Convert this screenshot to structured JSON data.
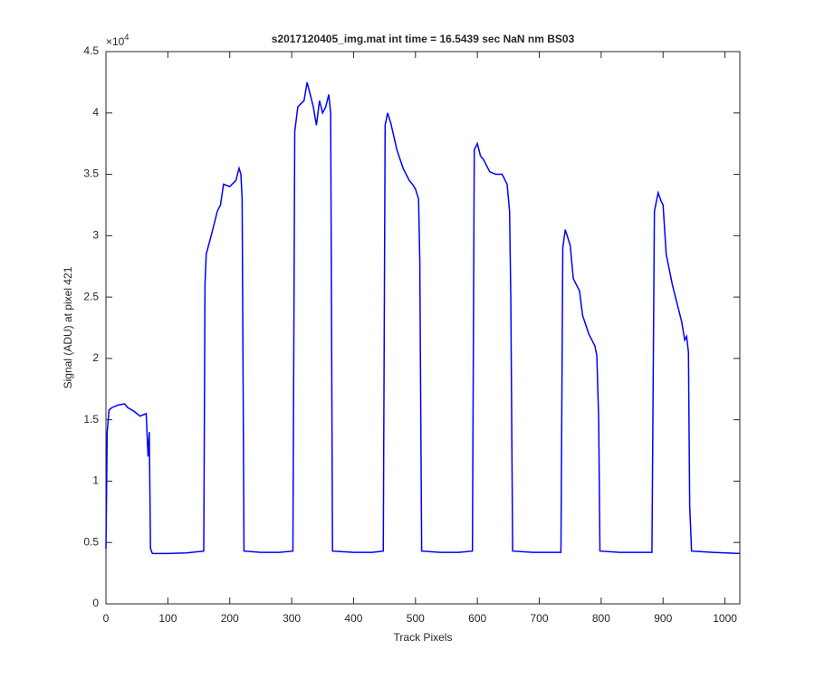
{
  "chart_data": {
    "type": "line",
    "title": "s2017120405_img.mat int time = 16.5439 sec  NaN nm BS03",
    "x_label": "Track Pixels",
    "y_label": "Signal (ADU) at pixel 421",
    "y_multiplier": {
      "base": "×10",
      "power": "4"
    },
    "xlim": [
      0,
      1024
    ],
    "xticks": [
      0,
      100,
      200,
      300,
      400,
      500,
      600,
      700,
      800,
      900,
      1000
    ],
    "ylim": [
      0,
      4.5
    ],
    "yticks": [
      0,
      0.5,
      1,
      1.5,
      2,
      2.5,
      3,
      3.5,
      4,
      4.5
    ],
    "grid": false,
    "color": "#0000ff",
    "x": [
      0,
      2,
      5,
      10,
      20,
      30,
      35,
      45,
      55,
      65,
      68,
      70,
      72,
      75,
      100,
      130,
      158,
      160,
      162,
      170,
      180,
      185,
      190,
      200,
      210,
      215,
      218,
      220,
      223,
      250,
      280,
      302,
      305,
      310,
      320,
      325,
      330,
      335,
      340,
      345,
      350,
      355,
      360,
      363,
      366,
      400,
      430,
      448,
      451,
      455,
      460,
      470,
      480,
      490,
      495,
      500,
      505,
      507,
      510,
      540,
      570,
      592,
      595,
      600,
      605,
      610,
      620,
      630,
      640,
      648,
      652,
      654,
      657,
      690,
      720,
      735,
      738,
      742,
      750,
      755,
      765,
      770,
      780,
      785,
      790,
      793,
      796,
      798,
      830,
      860,
      882,
      886,
      892,
      897,
      900,
      905,
      915,
      925,
      930,
      935,
      938,
      941,
      943,
      946,
      980,
      1024
    ],
    "values": [
      0.45,
      1.4,
      1.58,
      1.6,
      1.62,
      1.63,
      1.6,
      1.57,
      1.53,
      1.55,
      1.2,
      1.4,
      0.45,
      0.41,
      0.41,
      0.415,
      0.43,
      2.6,
      2.85,
      3.0,
      3.2,
      3.25,
      3.42,
      3.4,
      3.45,
      3.55,
      3.5,
      3.3,
      0.43,
      0.42,
      0.42,
      0.43,
      3.85,
      4.05,
      4.1,
      4.25,
      4.15,
      4.05,
      3.9,
      4.1,
      4.0,
      4.05,
      4.15,
      4.0,
      0.43,
      0.42,
      0.42,
      0.43,
      3.9,
      4.0,
      3.92,
      3.7,
      3.55,
      3.45,
      3.42,
      3.38,
      3.3,
      2.8,
      0.43,
      0.42,
      0.42,
      0.43,
      3.7,
      3.75,
      3.65,
      3.62,
      3.52,
      3.5,
      3.5,
      3.42,
      3.2,
      2.5,
      0.43,
      0.42,
      0.42,
      0.42,
      2.9,
      3.05,
      2.92,
      2.65,
      2.55,
      2.35,
      2.2,
      2.15,
      2.1,
      2.02,
      1.5,
      0.43,
      0.42,
      0.42,
      0.42,
      3.2,
      3.35,
      3.28,
      3.25,
      2.85,
      2.6,
      2.4,
      2.3,
      2.15,
      2.18,
      2.05,
      0.8,
      0.43,
      0.42,
      0.41
    ]
  }
}
